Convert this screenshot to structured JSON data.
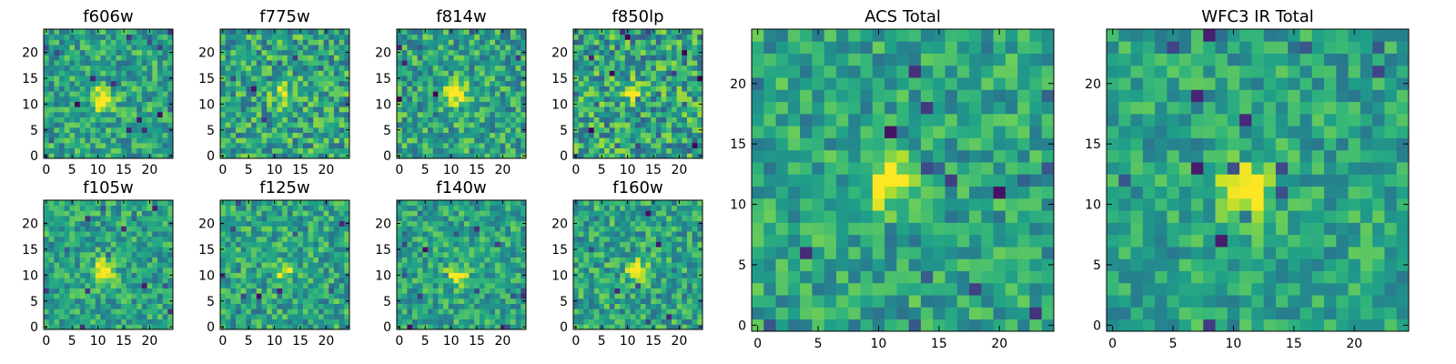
{
  "chart_data": [
    {
      "type": "heatmap",
      "title": "f606w",
      "grid": [
        25,
        25
      ],
      "colormap": "viridis",
      "seed": 11,
      "peak": [
        11,
        11
      ],
      "peak_strength": 0.55,
      "noise": 0.22,
      "xticks": [
        0,
        5,
        10,
        15,
        20
      ],
      "yticks": [
        0,
        5,
        10,
        15,
        20
      ],
      "xlim": [
        0,
        24
      ],
      "ylim": [
        0,
        24
      ]
    },
    {
      "type": "heatmap",
      "title": "f775w",
      "grid": [
        25,
        25
      ],
      "colormap": "viridis",
      "seed": 23,
      "peak": [
        12,
        12
      ],
      "peak_strength": 0.45,
      "noise": 0.26,
      "xticks": [
        0,
        5,
        10,
        15,
        20
      ],
      "yticks": [
        0,
        5,
        10,
        15,
        20
      ],
      "xlim": [
        0,
        24
      ],
      "ylim": [
        0,
        24
      ]
    },
    {
      "type": "heatmap",
      "title": "f814w",
      "grid": [
        25,
        25
      ],
      "colormap": "viridis",
      "seed": 37,
      "peak": [
        11,
        12
      ],
      "peak_strength": 0.5,
      "noise": 0.24,
      "xticks": [
        0,
        5,
        10,
        15,
        20
      ],
      "yticks": [
        0,
        5,
        10,
        15,
        20
      ],
      "xlim": [
        0,
        24
      ],
      "ylim": [
        0,
        24
      ]
    },
    {
      "type": "heatmap",
      "title": "f850lp",
      "grid": [
        25,
        25
      ],
      "colormap": "viridis",
      "seed": 41,
      "peak": [
        11,
        12
      ],
      "peak_strength": 0.3,
      "noise": 0.28,
      "xticks": [
        0,
        5,
        10,
        15,
        20
      ],
      "yticks": [
        0,
        5,
        10,
        15,
        20
      ],
      "xlim": [
        0,
        24
      ],
      "ylim": [
        0,
        24
      ]
    },
    {
      "type": "heatmap",
      "title": "f105w",
      "grid": [
        25,
        25
      ],
      "colormap": "viridis",
      "seed": 53,
      "peak": [
        11,
        11
      ],
      "peak_strength": 0.45,
      "noise": 0.2,
      "xticks": [
        0,
        5,
        10,
        15,
        20
      ],
      "yticks": [
        0,
        5,
        10,
        15,
        20
      ],
      "xlim": [
        0,
        24
      ],
      "ylim": [
        0,
        24
      ]
    },
    {
      "type": "heatmap",
      "title": "f125w",
      "grid": [
        25,
        25
      ],
      "colormap": "viridis",
      "seed": 67,
      "peak": [
        12,
        11
      ],
      "peak_strength": 0.35,
      "noise": 0.22,
      "xticks": [
        0,
        5,
        10,
        15,
        20
      ],
      "yticks": [
        0,
        5,
        10,
        15,
        20
      ],
      "xlim": [
        0,
        24
      ],
      "ylim": [
        0,
        24
      ]
    },
    {
      "type": "heatmap",
      "title": "f140w",
      "grid": [
        25,
        25
      ],
      "colormap": "viridis",
      "seed": 79,
      "peak": [
        11,
        10
      ],
      "peak_strength": 0.4,
      "noise": 0.2,
      "xticks": [
        0,
        5,
        10,
        15,
        20
      ],
      "yticks": [
        0,
        5,
        10,
        15,
        20
      ],
      "xlim": [
        0,
        24
      ],
      "ylim": [
        0,
        24
      ]
    },
    {
      "type": "heatmap",
      "title": "f160w",
      "grid": [
        25,
        25
      ],
      "colormap": "viridis",
      "seed": 83,
      "peak": [
        12,
        11
      ],
      "peak_strength": 0.4,
      "noise": 0.22,
      "xticks": [
        0,
        5,
        10,
        15,
        20
      ],
      "yticks": [
        0,
        5,
        10,
        15,
        20
      ],
      "xlim": [
        0,
        24
      ],
      "ylim": [
        0,
        24
      ]
    },
    {
      "type": "heatmap",
      "title": "ACS Total",
      "grid": [
        25,
        25
      ],
      "colormap": "viridis",
      "seed": 97,
      "peak": [
        11,
        12
      ],
      "peak_strength": 0.55,
      "noise": 0.2,
      "xticks": [
        0,
        5,
        10,
        15,
        20
      ],
      "yticks": [
        0,
        5,
        10,
        15,
        20
      ],
      "xlim": [
        0,
        24
      ],
      "ylim": [
        0,
        24
      ]
    },
    {
      "type": "heatmap",
      "title": "WFC3 IR Total",
      "grid": [
        25,
        25
      ],
      "colormap": "viridis",
      "seed": 101,
      "peak": [
        11,
        11
      ],
      "peak_strength": 0.55,
      "noise": 0.18,
      "xticks": [
        0,
        5,
        10,
        15,
        20
      ],
      "yticks": [
        0,
        5,
        10,
        15,
        20
      ],
      "xlim": [
        0,
        24
      ],
      "ylim": [
        0,
        24
      ]
    }
  ]
}
